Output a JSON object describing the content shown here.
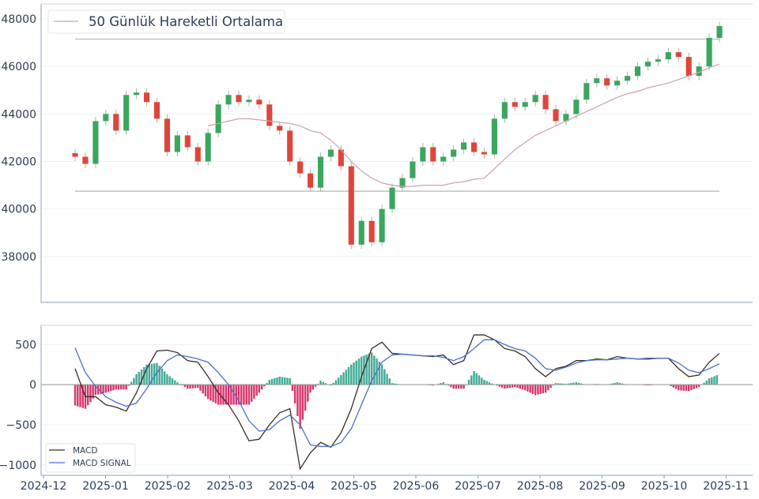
{
  "chart_data": [
    {
      "type": "candlestick",
      "title": "",
      "legend": {
        "label": "50 Günlük Hareketli Ortalama",
        "placement": "top-left"
      },
      "ylim": [
        36070,
        48630
      ],
      "yticks": [
        38000,
        40000,
        42000,
        44000,
        46000,
        48000
      ],
      "ytick_labels": [
        "38000",
        "40000",
        "42000",
        "44000",
        "46000",
        "48000"
      ],
      "hlines": [
        47150,
        40750
      ],
      "closes": [
        42200,
        41900,
        43700,
        44000,
        43300,
        44800,
        44900,
        44500,
        43800,
        42400,
        43100,
        42600,
        42000,
        43200,
        44400,
        44800,
        44500,
        44600,
        44400,
        43500,
        43300,
        42000,
        41500,
        40900,
        42200,
        42500,
        41800,
        38500,
        39500,
        38600,
        40000,
        40900,
        41300,
        42000,
        42600,
        42000,
        42200,
        42500,
        42800,
        42400,
        42300,
        43800,
        44500,
        44300,
        44500,
        44800,
        44200,
        43700,
        44000,
        44600,
        45300,
        45500,
        45200,
        45400,
        45600,
        46000,
        46200,
        46300,
        46600,
        46400,
        45600,
        46000,
        47200,
        47700
      ],
      "moving_average_50": [
        null,
        null,
        null,
        null,
        null,
        null,
        null,
        null,
        null,
        null,
        null,
        null,
        null,
        43500,
        43600,
        43700,
        43800,
        43800,
        43750,
        43700,
        43650,
        43600,
        43500,
        43300,
        43200,
        42900,
        42500,
        42000,
        41600,
        41300,
        41100,
        41000,
        40950,
        40950,
        41000,
        41000,
        41000,
        41100,
        41150,
        41250,
        41300,
        41700,
        42100,
        42500,
        42800,
        43100,
        43300,
        43500,
        43700,
        43900,
        44100,
        44300,
        44500,
        44700,
        44850,
        44950,
        45100,
        45200,
        45300,
        45450,
        45600,
        45750,
        45950,
        46100
      ],
      "colors": {
        "up": "#3aa65e",
        "down": "#e0453a",
        "ma": "#c9a3ad",
        "hline": "#c8c8c0"
      }
    },
    {
      "type": "line",
      "ylim": [
        -1130,
        740
      ],
      "yticks": [
        -1000,
        -500,
        0,
        500
      ],
      "ytick_labels": [
        "−1000",
        "−500",
        "0",
        "500"
      ],
      "xtick_labels": [
        "2024-12",
        "2025-01",
        "2025-02",
        "2025-03",
        "2025-04",
        "2025-05",
        "2025-06",
        "2025-07",
        "2025-08",
        "2025-09",
        "2025-10",
        "2025-11"
      ],
      "legend": {
        "placement": "bottom-left"
      },
      "series": [
        {
          "name": "MACD",
          "color": "#3b2a2a",
          "values": [
            200,
            -150,
            -150,
            -250,
            -280,
            -330,
            -100,
            200,
            420,
            430,
            400,
            300,
            280,
            100,
            -100,
            -250,
            -450,
            -700,
            -680,
            -500,
            -350,
            -300,
            -1050,
            -850,
            -720,
            -780,
            -600,
            -300,
            100,
            450,
            530,
            390,
            380,
            370,
            360,
            350,
            370,
            250,
            300,
            620,
            620,
            560,
            450,
            420,
            350,
            200,
            100,
            200,
            230,
            300,
            300,
            320,
            310,
            350,
            330,
            320,
            320,
            330,
            330,
            200,
            100,
            120,
            280,
            390
          ]
        },
        {
          "name": "MACD SIGNAL",
          "color": "#4a6fd0",
          "values": [
            460,
            150,
            -20,
            -150,
            -220,
            -270,
            -230,
            -50,
            150,
            300,
            370,
            350,
            320,
            280,
            150,
            0,
            -200,
            -450,
            -580,
            -560,
            -450,
            -380,
            -500,
            -750,
            -770,
            -770,
            -720,
            -550,
            -250,
            50,
            280,
            370,
            380,
            370,
            360,
            360,
            340,
            300,
            350,
            450,
            560,
            560,
            500,
            450,
            420,
            330,
            200,
            180,
            220,
            270,
            300,
            310,
            310,
            320,
            330,
            320,
            330,
            330,
            330,
            270,
            180,
            150,
            200,
            260
          ]
        }
      ],
      "histogram_colors": {
        "positive": "#3fa894",
        "negative": "#d9336b"
      }
    }
  ]
}
